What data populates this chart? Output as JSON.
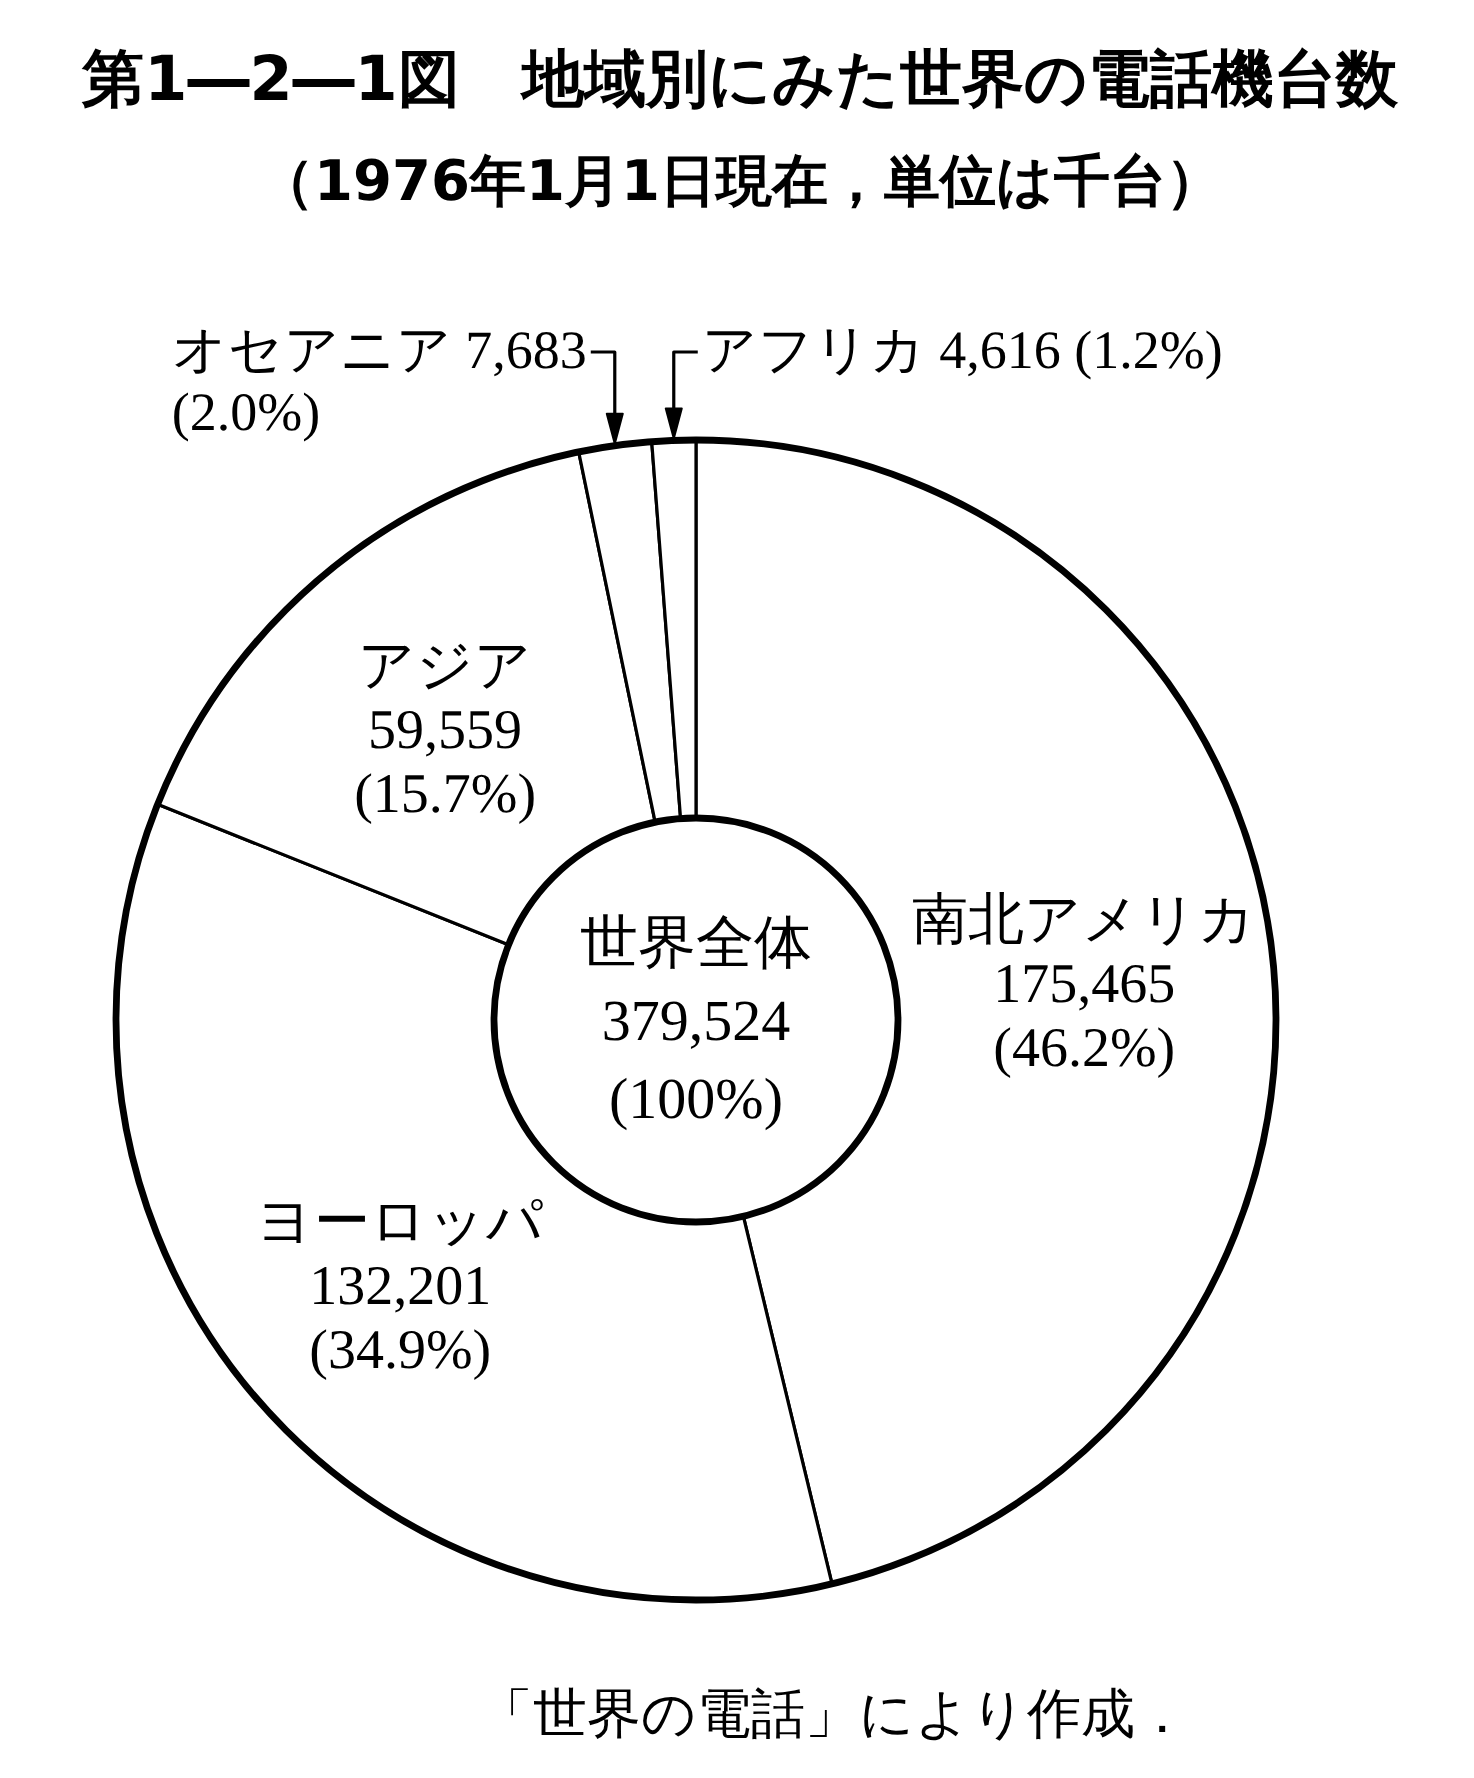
{
  "chart_data": {
    "type": "donut",
    "title": "第1―2―1図　地域別にみた世界の電話機台数",
    "subtitle": "（1976年1月1日現在，単位は千台）",
    "categories": [
      "南北アメリカ",
      "ヨーロッパ",
      "アジア",
      "オセアニア",
      "アフリカ"
    ],
    "values": [
      175465,
      132201,
      59559,
      7683,
      4616
    ],
    "colors": [
      "#ffffff",
      "#ffffff",
      "#ffffff",
      "#ffffff",
      "#ffffff"
    ],
    "value_labels": [
      "175,465 (46.2%)",
      "132,201 (34.9%)",
      "59,559 (15.7%)",
      "7,683 (2.0%)",
      "4,616 (1.2%)"
    ],
    "annotations": [
      "世界全体 379,524 (100%)",
      "「世界の電話」により作成．"
    ]
  }
}
